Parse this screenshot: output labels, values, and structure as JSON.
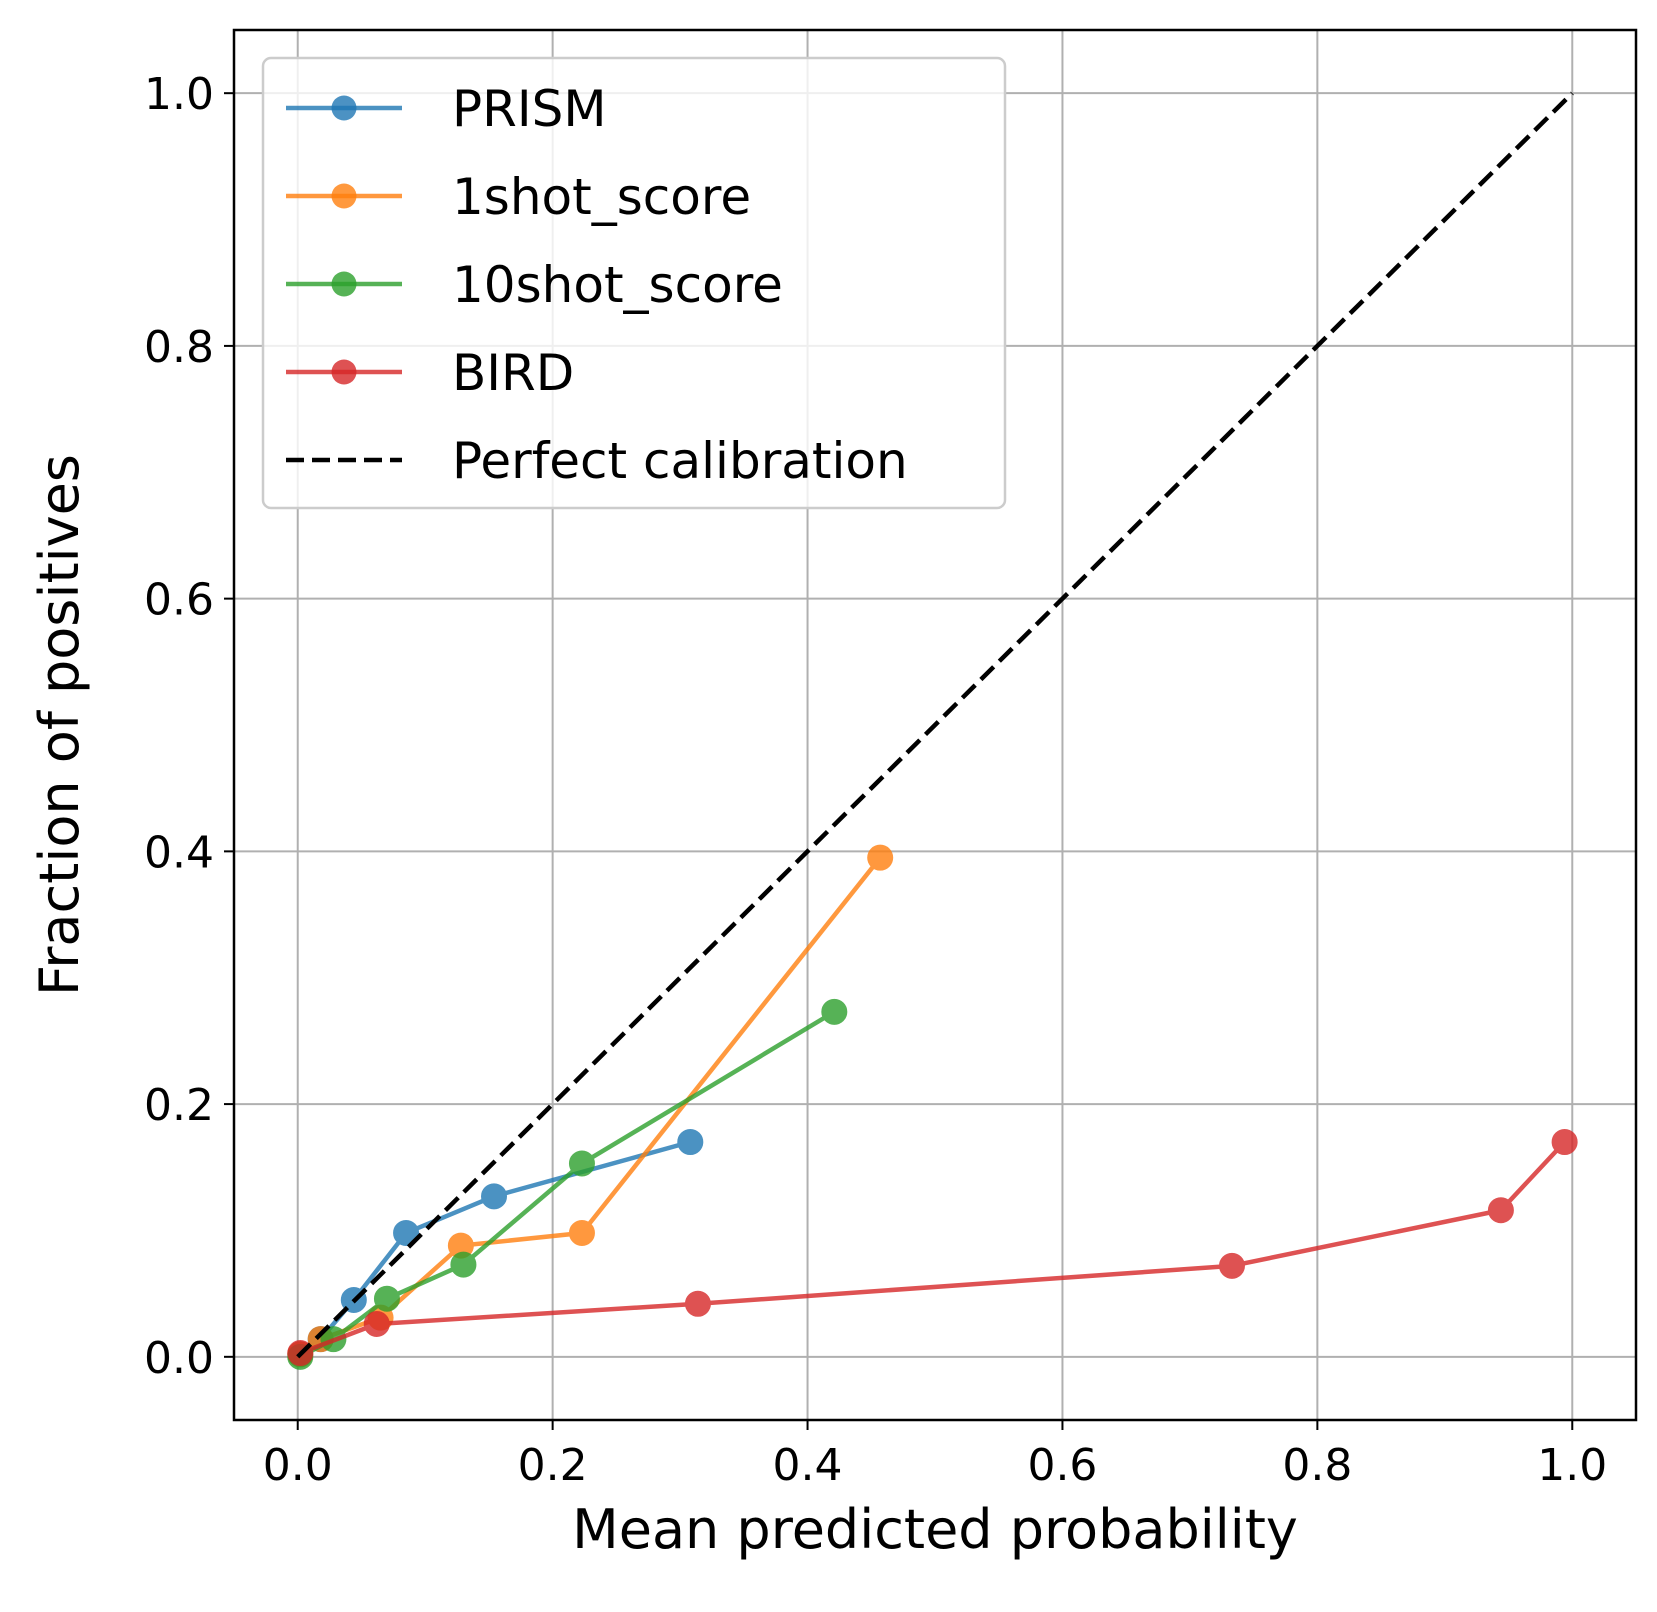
{
  "chart_data": {
    "type": "line",
    "title": "",
    "xlabel": "Mean predicted probability",
    "ylabel": "Fraction of positives",
    "xlim": [
      -0.05,
      1.05
    ],
    "ylim": [
      -0.05,
      1.05
    ],
    "xticks": [
      0.0,
      0.2,
      0.4,
      0.6,
      0.8,
      1.0
    ],
    "yticks": [
      0.0,
      0.2,
      0.4,
      0.6,
      0.8,
      1.0
    ],
    "xtick_labels": [
      "0.0",
      "0.2",
      "0.4",
      "0.6",
      "0.8",
      "1.0"
    ],
    "ytick_labels": [
      "0.0",
      "0.2",
      "0.4",
      "0.6",
      "0.8",
      "1.0"
    ],
    "grid": true,
    "legend_position": "top-left",
    "series": [
      {
        "name": "PRISM",
        "color": "#1f77b4",
        "x": [
          0.002,
          0.018,
          0.044,
          0.085,
          0.154,
          0.308
        ],
        "y": [
          0.002,
          0.014,
          0.045,
          0.098,
          0.127,
          0.17
        ]
      },
      {
        "name": "1shot_score",
        "color": "#ff7f0e",
        "x": [
          0.002,
          0.018,
          0.065,
          0.128,
          0.223,
          0.457
        ],
        "y": [
          0.002,
          0.014,
          0.031,
          0.088,
          0.098,
          0.395
        ]
      },
      {
        "name": "10shot_score",
        "color": "#2ca02c",
        "x": [
          0.002,
          0.028,
          0.07,
          0.13,
          0.223,
          0.421
        ],
        "y": [
          0.0,
          0.014,
          0.046,
          0.073,
          0.153,
          0.273
        ]
      },
      {
        "name": "BIRD",
        "color": "#d62728",
        "x": [
          0.002,
          0.062,
          0.314,
          0.733,
          0.944,
          0.994
        ],
        "y": [
          0.003,
          0.026,
          0.042,
          0.072,
          0.116,
          0.17
        ]
      }
    ],
    "reference_line": {
      "name": "Perfect calibration",
      "color": "#000000",
      "style": "dashed",
      "x": [
        0.0,
        1.0
      ],
      "y": [
        0.0,
        1.0
      ]
    }
  }
}
